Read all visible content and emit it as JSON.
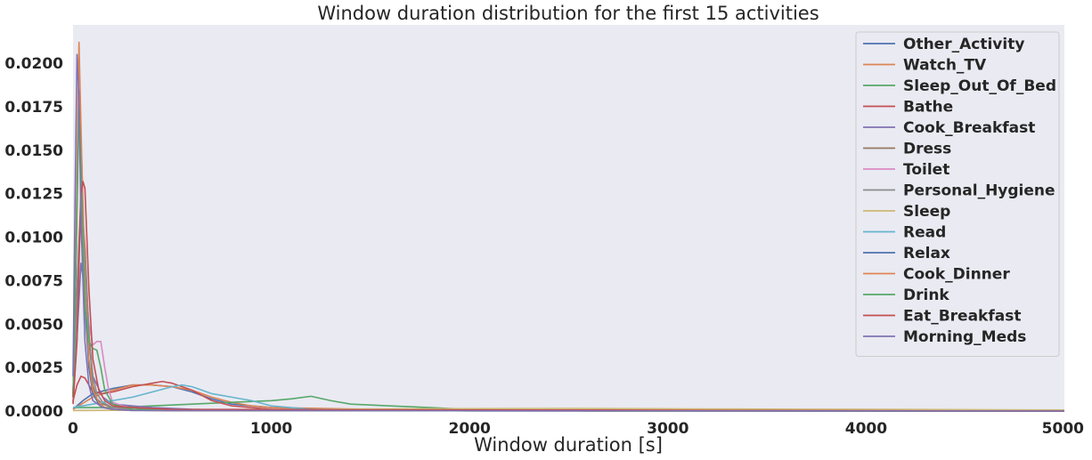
{
  "chart_data": {
    "type": "line",
    "title": "Window duration distribution for the first 15 activities",
    "xlabel": "Window duration [s]",
    "ylabel": "",
    "xlim": [
      0,
      5000
    ],
    "ylim": [
      0,
      0.0222
    ],
    "grid": false,
    "legend_position": "top-right",
    "x_ticks": [
      {
        "value": 0,
        "label": "0"
      },
      {
        "value": 1000,
        "label": "1000"
      },
      {
        "value": 2000,
        "label": "2000"
      },
      {
        "value": 3000,
        "label": "3000"
      },
      {
        "value": 4000,
        "label": "4000"
      },
      {
        "value": 5000,
        "label": "5000"
      }
    ],
    "y_ticks": [
      {
        "value": 0,
        "label": "0.0000"
      },
      {
        "value": 0.0025,
        "label": "0.0025"
      },
      {
        "value": 0.005,
        "label": "0.0050"
      },
      {
        "value": 0.0075,
        "label": "0.0075"
      },
      {
        "value": 0.01,
        "label": "0.0100"
      },
      {
        "value": 0.0125,
        "label": "0.0125"
      },
      {
        "value": 0.015,
        "label": "0.0150"
      },
      {
        "value": 0.0175,
        "label": "0.0175"
      },
      {
        "value": 0.02,
        "label": "0.0200"
      }
    ],
    "series": [
      {
        "name": "Other_Activity",
        "color": "#4c72b0",
        "x": [
          0,
          50,
          100,
          200,
          300,
          400,
          500,
          600,
          700,
          800,
          1000,
          1500,
          2000,
          5000
        ],
        "y": [
          0.0001,
          0.0006,
          0.001,
          0.0013,
          0.0015,
          0.0015,
          0.0014,
          0.0011,
          0.0007,
          0.0004,
          0.0002,
          5e-05,
          1e-05,
          0
        ]
      },
      {
        "name": "Watch_TV",
        "color": "#dd8452",
        "x": [
          0,
          100,
          200,
          300,
          400,
          500,
          600,
          700,
          800,
          900,
          1000,
          1500,
          2000,
          5000
        ],
        "y": [
          0.0001,
          0.0008,
          0.0012,
          0.0015,
          0.0015,
          0.0014,
          0.0012,
          0.0008,
          0.0005,
          0.0003,
          0.0002,
          0.0001,
          3e-05,
          0
        ]
      },
      {
        "name": "Sleep_Out_Of_Bed",
        "color": "#55a868",
        "x": [
          0,
          200,
          400,
          600,
          800,
          1000,
          1100,
          1200,
          1300,
          1400,
          1600,
          1800,
          2000,
          2400,
          2600,
          5000
        ],
        "y": [
          0.0002,
          0.0002,
          0.0003,
          0.0004,
          0.0005,
          0.0006,
          0.0007,
          0.00085,
          0.0006,
          0.0004,
          0.0003,
          0.0002,
          0.0001,
          5e-05,
          0,
          0
        ]
      },
      {
        "name": "Bathe",
        "color": "#c44e52",
        "x": [
          0,
          20,
          40,
          60,
          80,
          100,
          150,
          200,
          300,
          400,
          450,
          500,
          600,
          700,
          800,
          1000,
          5000
        ],
        "y": [
          0.0006,
          0.0015,
          0.002,
          0.0019,
          0.0015,
          0.0011,
          0.001,
          0.0011,
          0.0014,
          0.0016,
          0.0017,
          0.0016,
          0.0012,
          0.0006,
          0.0003,
          0.0001,
          0
        ]
      },
      {
        "name": "Cook_Breakfast",
        "color": "#8172b3",
        "x": [
          0,
          20,
          40,
          60,
          80,
          100,
          150,
          200,
          300,
          400,
          600,
          800,
          5000
        ],
        "y": [
          0.0005,
          0.0042,
          0.0085,
          0.007,
          0.004,
          0.002,
          0.0008,
          0.0004,
          0.0003,
          0.0002,
          0.0001,
          5e-05,
          0
        ]
      },
      {
        "name": "Dress",
        "color": "#937860",
        "x": [
          0,
          20,
          40,
          60,
          80,
          100,
          120,
          150,
          200,
          300,
          400,
          600,
          5000
        ],
        "y": [
          0.001,
          0.007,
          0.0125,
          0.0095,
          0.0045,
          0.0015,
          0.0007,
          0.0004,
          0.0002,
          0.0002,
          0.0001,
          3e-05,
          0
        ]
      },
      {
        "name": "Toilet",
        "color": "#da8bc3",
        "x": [
          0,
          15,
          30,
          45,
          60,
          80,
          100,
          120,
          140,
          160,
          180,
          200,
          300,
          500,
          5000
        ],
        "y": [
          0.001,
          0.008,
          0.018,
          0.014,
          0.008,
          0.005,
          0.0038,
          0.004,
          0.004,
          0.0025,
          0.0012,
          0.0005,
          0.0001,
          3e-05,
          0
        ]
      },
      {
        "name": "Personal_Hygiene",
        "color": "#8c8c8c",
        "x": [
          0,
          20,
          40,
          60,
          80,
          100,
          120,
          150,
          200,
          300,
          500,
          5000
        ],
        "y": [
          0.0008,
          0.006,
          0.0118,
          0.0088,
          0.0045,
          0.002,
          0.001,
          0.0005,
          0.0002,
          0.0001,
          3e-05,
          0
        ]
      },
      {
        "name": "Sleep",
        "color": "#ccb974",
        "x": [
          0,
          500,
          1000,
          1500,
          2000,
          2500,
          3000,
          3500,
          4000,
          4500,
          5000
        ],
        "y": [
          3e-05,
          6e-05,
          0.0001,
          0.00012,
          0.00014,
          0.00015,
          0.00013,
          0.00011,
          0.0001,
          8e-05,
          6e-05
        ]
      },
      {
        "name": "Read",
        "color": "#64b5cd",
        "x": [
          0,
          100,
          200,
          300,
          400,
          500,
          550,
          600,
          650,
          700,
          800,
          900,
          1000,
          1200,
          1500,
          5000
        ],
        "y": [
          0.0002,
          0.0004,
          0.0006,
          0.0008,
          0.0011,
          0.0014,
          0.0015,
          0.0014,
          0.0012,
          0.001,
          0.0008,
          0.0006,
          0.0003,
          0.0001,
          3e-05,
          0
        ]
      },
      {
        "name": "Relax",
        "color": "#4c72b0",
        "x": [
          0,
          15,
          30,
          45,
          60,
          80,
          100,
          130,
          160,
          200,
          300,
          500,
          5000
        ],
        "y": [
          0.0008,
          0.009,
          0.0185,
          0.012,
          0.006,
          0.0025,
          0.001,
          0.0004,
          0.0002,
          0.0001,
          5e-05,
          2e-05,
          0
        ]
      },
      {
        "name": "Cook_Dinner",
        "color": "#dd8452",
        "x": [
          0,
          15,
          30,
          45,
          60,
          80,
          100,
          130,
          160,
          200,
          300,
          500,
          5000
        ],
        "y": [
          0.0008,
          0.01,
          0.0212,
          0.014,
          0.007,
          0.003,
          0.0012,
          0.0005,
          0.0002,
          0.0001,
          5e-05,
          2e-05,
          0
        ]
      },
      {
        "name": "Drink",
        "color": "#55a868",
        "x": [
          0,
          15,
          30,
          45,
          60,
          80,
          100,
          120,
          140,
          160,
          200,
          300,
          500,
          5000
        ],
        "y": [
          0.0008,
          0.009,
          0.0175,
          0.012,
          0.006,
          0.004,
          0.0036,
          0.0035,
          0.0025,
          0.0012,
          0.0004,
          0.0001,
          3e-05,
          0
        ]
      },
      {
        "name": "Eat_Breakfast",
        "color": "#c44e52",
        "x": [
          0,
          20,
          40,
          50,
          60,
          80,
          100,
          130,
          160,
          200,
          300,
          500,
          5000
        ],
        "y": [
          0.0004,
          0.004,
          0.0125,
          0.0132,
          0.0128,
          0.007,
          0.003,
          0.0012,
          0.0006,
          0.0003,
          0.0002,
          0.0001,
          0
        ]
      },
      {
        "name": "Morning_Meds",
        "color": "#8172b3",
        "x": [
          0,
          10,
          20,
          30,
          40,
          60,
          80,
          100,
          150,
          200,
          300,
          5000
        ],
        "y": [
          0.002,
          0.012,
          0.0205,
          0.018,
          0.011,
          0.004,
          0.0015,
          0.0006,
          0.0002,
          0.0001,
          3e-05,
          0
        ]
      }
    ]
  }
}
